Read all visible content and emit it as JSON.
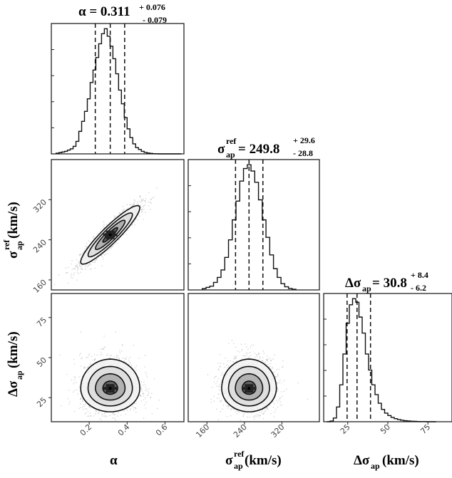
{
  "chart_data": [
    {
      "type": "histogram",
      "panel": "alpha",
      "title": {
        "prefix": "α = 0.311",
        "plus": "+ 0.076",
        "minus": "- 0.079"
      },
      "xlim": [
        0.0,
        0.7
      ],
      "x_ticks": [
        0.2,
        0.4,
        0.6
      ],
      "x_tick_labels": [
        "0.2",
        "0.4",
        "0.6"
      ],
      "xlabel": {
        "main": "α"
      },
      "quantiles": [
        0.232,
        0.311,
        0.387
      ],
      "bin_edges": [
        0.025,
        0.04,
        0.055,
        0.07,
        0.085,
        0.1,
        0.115,
        0.13,
        0.145,
        0.16,
        0.175,
        0.19,
        0.205,
        0.22,
        0.235,
        0.25,
        0.265,
        0.28,
        0.295,
        0.31,
        0.325,
        0.34,
        0.355,
        0.37,
        0.385,
        0.4,
        0.415,
        0.43,
        0.445,
        0.46,
        0.475,
        0.49,
        0.505,
        0.52,
        0.535,
        0.55,
        0.565,
        0.58,
        0.595,
        0.61,
        0.625,
        0.64,
        0.655,
        0.67,
        0.685
      ],
      "counts": [
        0.005,
        0.01,
        0.015,
        0.02,
        0.03,
        0.04,
        0.06,
        0.1,
        0.18,
        0.26,
        0.34,
        0.44,
        0.57,
        0.67,
        0.77,
        0.88,
        0.96,
        1.0,
        0.94,
        0.86,
        0.76,
        0.64,
        0.51,
        0.4,
        0.29,
        0.2,
        0.13,
        0.08,
        0.05,
        0.035,
        0.02,
        0.012,
        0.007,
        0.004,
        0.002,
        0.001,
        0,
        0,
        0,
        0,
        0,
        0,
        0,
        0
      ]
    },
    {
      "type": "histogram",
      "panel": "sigma_ref",
      "title": {
        "prefix": "σ",
        "sup": "ref",
        "sub": "ap",
        "eq": "= 249.8",
        "plus": "+ 29.6",
        "minus": "- 28.8"
      },
      "xlim": [
        120,
        400
      ],
      "x_ticks": [
        160,
        240,
        320
      ],
      "x_tick_labels": [
        "160",
        "240",
        "320"
      ],
      "xlabel": {
        "main": "σ",
        "sup": "ref",
        "sub": "ap",
        "unit": " (km/s)"
      },
      "quantiles": [
        221,
        249.8,
        279.4
      ],
      "bin_edges": [
        150,
        158,
        166,
        174,
        182,
        190,
        198,
        206,
        214,
        222,
        230,
        238,
        246,
        254,
        262,
        270,
        278,
        286,
        294,
        302,
        310,
        318,
        326,
        334,
        342,
        350
      ],
      "counts": [
        0.01,
        0.02,
        0.03,
        0.06,
        0.1,
        0.16,
        0.26,
        0.4,
        0.56,
        0.71,
        0.87,
        0.97,
        1.0,
        0.95,
        0.86,
        0.72,
        0.56,
        0.42,
        0.28,
        0.17,
        0.1,
        0.05,
        0.025,
        0.012,
        0.005
      ]
    },
    {
      "type": "histogram",
      "panel": "delta_sigma",
      "title": {
        "prefix": "Δσ",
        "sub": "ap",
        "eq": "= 30.8",
        "plus": "+ 8.4",
        "minus": "- 6.2"
      },
      "xlim": [
        10,
        90
      ],
      "x_ticks": [
        25,
        50,
        75
      ],
      "x_tick_labels": [
        "25",
        "50",
        "75"
      ],
      "xlabel": {
        "main": "Δσ",
        "sub": "ap",
        "unit": "(km/s)"
      },
      "quantiles": [
        24.6,
        30.8,
        39.2
      ],
      "bin_edges": [
        12,
        14,
        16,
        18,
        20,
        22,
        24,
        26,
        28,
        30,
        32,
        34,
        36,
        38,
        40,
        42,
        44,
        46,
        48,
        50,
        52,
        54,
        56,
        58,
        60,
        62,
        64,
        66,
        68,
        70,
        72,
        74,
        76,
        78,
        80
      ],
      "counts": [
        0,
        0.005,
        0.03,
        0.12,
        0.3,
        0.55,
        0.8,
        0.95,
        1.0,
        0.97,
        0.85,
        0.72,
        0.55,
        0.42,
        0.3,
        0.22,
        0.15,
        0.1,
        0.07,
        0.05,
        0.035,
        0.025,
        0.018,
        0.012,
        0.008,
        0.006,
        0.004,
        0.003,
        0.002,
        0.001,
        0.001,
        0,
        0,
        0
      ]
    },
    {
      "type": "scatter-density",
      "panel": "sigma_ref vs alpha",
      "xlim": [
        0.0,
        0.7
      ],
      "ylim": [
        140,
        400
      ],
      "y_ticks": [
        160,
        240,
        320
      ],
      "y_tick_labels": [
        "160",
        "240",
        "320"
      ],
      "ylabel": {
        "main": "σ",
        "sup": "ref",
        "sub": "ap",
        "unit": " (km/s)"
      },
      "center": [
        0.311,
        249.8
      ],
      "sigma": [
        0.078,
        29.2
      ],
      "correlation": 0.92,
      "contour_levels": [
        0.5,
        1.0,
        1.5,
        2.0
      ]
    },
    {
      "type": "scatter-density",
      "panel": "delta_sigma vs alpha",
      "xlim": [
        0.0,
        0.7
      ],
      "ylim": [
        10,
        90
      ],
      "y_ticks": [
        25,
        50,
        75
      ],
      "y_tick_labels": [
        "25",
        "50",
        "75"
      ],
      "ylabel": {
        "main": "Δσ",
        "sub": "ap",
        "unit": "(km/s)"
      },
      "center": [
        0.311,
        30.8
      ],
      "sigma": [
        0.078,
        7.3
      ],
      "correlation": 0.0,
      "contour_levels": [
        0.5,
        1.0,
        1.5,
        2.0
      ]
    },
    {
      "type": "scatter-density",
      "panel": "delta_sigma vs sigma_ref",
      "xlim": [
        120,
        400
      ],
      "ylim": [
        10,
        90
      ],
      "center": [
        249.8,
        30.8
      ],
      "sigma": [
        29.2,
        7.3
      ],
      "correlation": 0.0,
      "contour_levels": [
        0.5,
        1.0,
        1.5,
        2.0
      ]
    }
  ]
}
